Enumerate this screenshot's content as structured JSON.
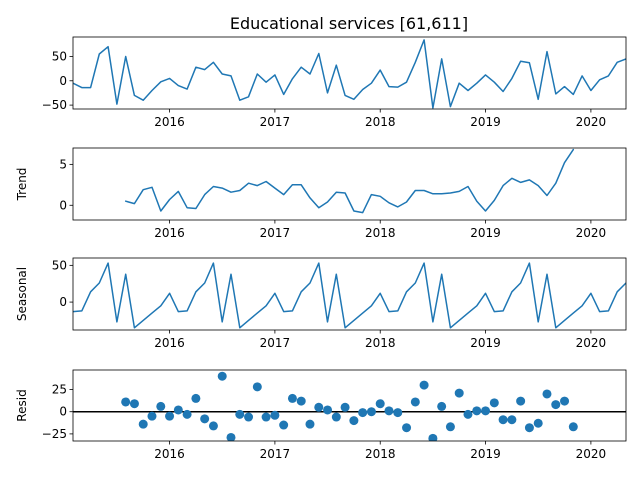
{
  "chart_data": {
    "type": "line",
    "title": "Educational services  [61,611]",
    "xlim": [
      2015.0833,
      2020.3333
    ],
    "x_ticks": [
      2016,
      2017,
      2018,
      2019,
      2020
    ],
    "x_tick_labels": [
      "2016",
      "2017",
      "2018",
      "2019",
      "2020"
    ],
    "panels": [
      {
        "name": "observed",
        "ylabel": "",
        "kind": "line",
        "ylim": [
          -58,
          90
        ],
        "y_ticks": [
          -50,
          0,
          50
        ],
        "y_tick_labels": [
          "−50",
          "0",
          "50"
        ],
        "start": 2015.0833,
        "step": 0.08333,
        "values": [
          -5,
          -14,
          -14,
          55,
          70,
          -48,
          50,
          -30,
          -40,
          -20,
          -2,
          5,
          -10,
          -17,
          28,
          23,
          38,
          14,
          10,
          -40,
          -33,
          14,
          -3,
          12,
          -28,
          4,
          28,
          14,
          56,
          -25,
          32,
          -30,
          -38,
          -18,
          -5,
          22,
          -12,
          -13,
          -3,
          38,
          84,
          -56,
          45,
          -53,
          -5,
          -20,
          -5,
          12,
          -3,
          -22,
          5,
          40,
          37,
          -38,
          60,
          -27,
          -12,
          -28,
          10,
          -20,
          2,
          10,
          38,
          45
        ]
      },
      {
        "name": "trend",
        "ylabel": "Trend",
        "kind": "line",
        "ylim": [
          -1.8,
          7.0
        ],
        "y_ticks": [
          0,
          5
        ],
        "y_tick_labels": [
          "0",
          "5"
        ],
        "start": 2015.5833,
        "step": 0.08333,
        "values": [
          0.5,
          0.2,
          1.9,
          2.2,
          -0.7,
          0.7,
          1.7,
          -0.3,
          -0.4,
          1.3,
          2.3,
          2.1,
          1.6,
          1.8,
          2.7,
          2.4,
          2.9,
          2.1,
          1.3,
          2.5,
          2.5,
          0.9,
          -0.3,
          0.4,
          1.6,
          1.5,
          -0.7,
          -0.9,
          1.3,
          1.1,
          0.3,
          -0.2,
          0.4,
          1.8,
          1.8,
          1.4,
          1.4,
          1.5,
          1.7,
          2.3,
          0.5,
          -0.7,
          0.6,
          2.4,
          3.3,
          2.8,
          3.1,
          2.4,
          1.2,
          2.7,
          5.2,
          6.8
        ]
      },
      {
        "name": "seasonal",
        "ylabel": "Seasonal",
        "kind": "line",
        "ylim": [
          -38,
          60
        ],
        "y_ticks": [
          0,
          50
        ],
        "y_tick_labels": [
          "0",
          "50"
        ],
        "start": 2015.0833,
        "step": 0.08333,
        "values": [
          -13,
          -12,
          14,
          26,
          53,
          -27,
          38,
          -35,
          -25,
          -15,
          -5,
          12,
          -13,
          -12,
          14,
          26,
          53,
          -27,
          38,
          -35,
          -25,
          -15,
          -5,
          12,
          -13,
          -12,
          14,
          26,
          53,
          -27,
          38,
          -35,
          -25,
          -15,
          -5,
          12,
          -13,
          -12,
          14,
          26,
          53,
          -27,
          38,
          -35,
          -25,
          -15,
          -5,
          12,
          -13,
          -12,
          14,
          26,
          53,
          -27,
          38,
          -35,
          -25,
          -15,
          -5,
          12,
          -13,
          -12,
          14,
          26
        ]
      },
      {
        "name": "resid",
        "ylabel": "Resid",
        "kind": "scatter",
        "ylim": [
          -33,
          47
        ],
        "y_ticks": [
          -25,
          0,
          25
        ],
        "y_tick_labels": [
          "−25",
          "0",
          "25"
        ],
        "start": 2015.5833,
        "step": 0.08333,
        "values": [
          11,
          9,
          -14,
          -5,
          6,
          -5,
          2,
          -3,
          15,
          -8,
          -16,
          40,
          -29,
          -3,
          -6,
          28,
          -6,
          -4,
          -15,
          15,
          12,
          -14,
          5,
          2,
          -6,
          5,
          -10,
          -1,
          0,
          9,
          1,
          -1,
          -18,
          11,
          30,
          -30,
          6,
          -17,
          21,
          -3,
          1,
          1,
          10,
          -9,
          -9,
          12,
          -18,
          -13,
          20,
          8,
          12,
          -17
        ]
      }
    ]
  }
}
